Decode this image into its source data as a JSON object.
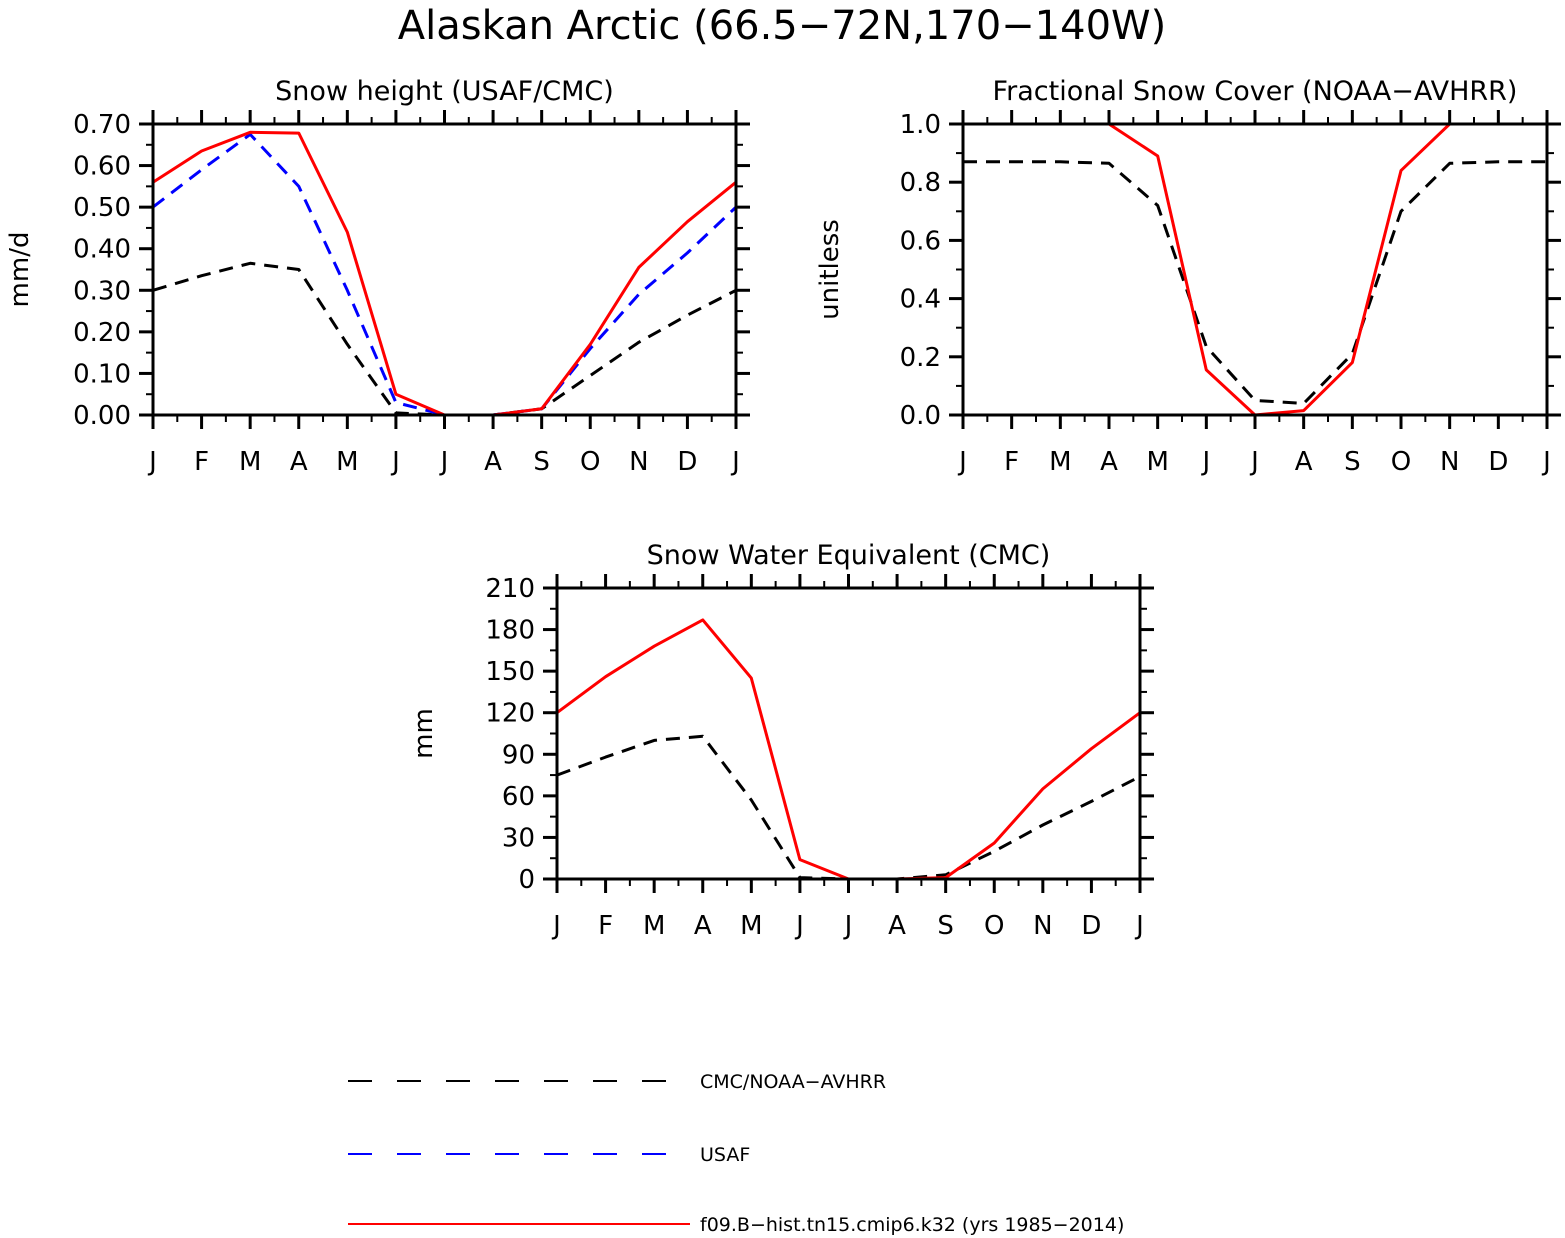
{
  "figure_title": "Alaskan Arctic (66.5−72N,170−140W)",
  "legend": [
    {
      "label": "CMC/NOAA−AVHRR",
      "color": "#000000",
      "dash": "dashed"
    },
    {
      "label": "USAF",
      "color": "#0000ff",
      "dash": "dashed"
    },
    {
      "label": "f09.B−hist.tn15.cmip6.k32 (yrs 1985−2014)",
      "color": "#ff0000",
      "dash": "solid"
    }
  ],
  "chart_data": [
    {
      "type": "line",
      "title": "Snow height (USAF/CMC)",
      "ylabel": "mm/d",
      "xlabel": "",
      "categories": [
        "J",
        "F",
        "M",
        "A",
        "M",
        "J",
        "J",
        "A",
        "S",
        "O",
        "N",
        "D",
        "J"
      ],
      "ylim": [
        0,
        0.7
      ],
      "yticks": [
        "0.00",
        "0.10",
        "0.20",
        "0.30",
        "0.40",
        "0.50",
        "0.60",
        "0.70"
      ],
      "series": [
        {
          "name": "CMC/NOAA−AVHRR",
          "color": "#000000",
          "dash": "dashed",
          "values": [
            0.3,
            0.335,
            0.365,
            0.35,
            0.17,
            0.005,
            0.0,
            0.0,
            0.015,
            0.095,
            0.175,
            0.24,
            0.3
          ]
        },
        {
          "name": "USAF",
          "color": "#0000ff",
          "dash": "dashed",
          "values": [
            0.5,
            0.59,
            0.675,
            0.55,
            0.3,
            0.03,
            0.0,
            0.0,
            0.015,
            0.16,
            0.29,
            0.39,
            0.5
          ]
        },
        {
          "name": "f09.B−hist.tn15.cmip6.k32 (yrs 1985−2014)",
          "color": "#ff0000",
          "dash": "solid",
          "values": [
            0.56,
            0.635,
            0.68,
            0.678,
            0.44,
            0.05,
            0.0,
            0.0,
            0.015,
            0.17,
            0.355,
            0.465,
            0.56
          ]
        }
      ]
    },
    {
      "type": "line",
      "title": "Fractional Snow Cover (NOAA−AVHRR)",
      "ylabel": "unitless",
      "xlabel": "",
      "categories": [
        "J",
        "F",
        "M",
        "A",
        "M",
        "J",
        "J",
        "A",
        "S",
        "O",
        "N",
        "D",
        "J"
      ],
      "ylim": [
        0,
        1.0
      ],
      "yticks": [
        "0.0",
        "0.2",
        "0.4",
        "0.6",
        "0.8",
        "1.0"
      ],
      "series": [
        {
          "name": "CMC/NOAA−AVHRR",
          "color": "#000000",
          "dash": "dashed",
          "values": [
            0.87,
            0.87,
            0.87,
            0.865,
            0.72,
            0.235,
            0.05,
            0.04,
            0.21,
            0.7,
            0.865,
            0.87,
            0.87
          ]
        },
        {
          "name": "f09.B−hist.tn15.cmip6.k32 (yrs 1985−2014)",
          "color": "#ff0000",
          "dash": "solid",
          "values": [
            1.0,
            1.0,
            1.0,
            1.0,
            0.89,
            0.155,
            0.0,
            0.015,
            0.18,
            0.84,
            1.0,
            1.0,
            1.0
          ]
        }
      ]
    },
    {
      "type": "line",
      "title": "Snow Water Equivalent (CMC)",
      "ylabel": "mm",
      "xlabel": "",
      "categories": [
        "J",
        "F",
        "M",
        "A",
        "M",
        "J",
        "J",
        "A",
        "S",
        "O",
        "N",
        "D",
        "J"
      ],
      "ylim": [
        0,
        210
      ],
      "yticks": [
        "0",
        "30",
        "60",
        "90",
        "120",
        "150",
        "180",
        "210"
      ],
      "series": [
        {
          "name": "CMC/NOAA−AVHRR",
          "color": "#000000",
          "dash": "dashed",
          "values": [
            75,
            88,
            100,
            103,
            57,
            1,
            0,
            0,
            3,
            20,
            39,
            56,
            74
          ]
        },
        {
          "name": "f09.B−hist.tn15.cmip6.k32 (yrs 1985−2014)",
          "color": "#ff0000",
          "dash": "solid",
          "values": [
            120,
            146,
            168,
            187,
            145,
            14,
            0,
            0,
            1,
            26,
            65,
            94,
            120
          ]
        }
      ]
    }
  ]
}
